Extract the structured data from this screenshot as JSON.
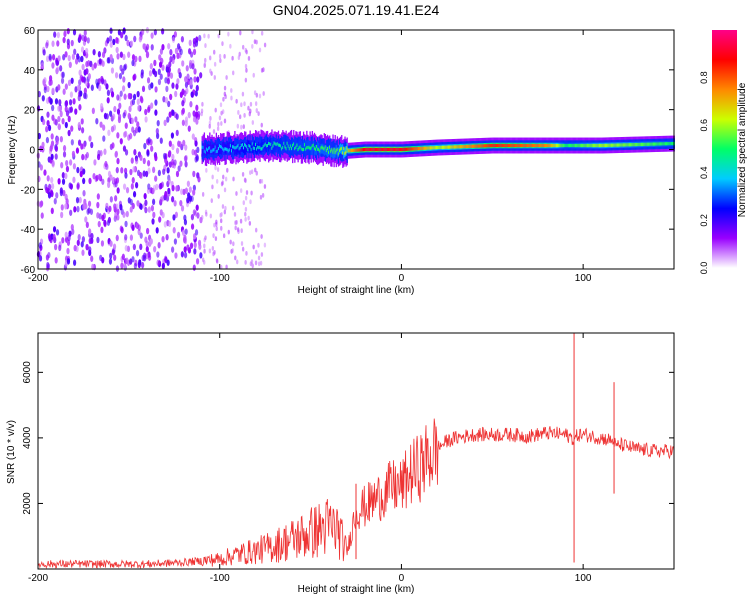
{
  "figure": {
    "title": "GN04.2025.071.19.41.E24"
  },
  "chart_data": [
    {
      "type": "heatmap",
      "xlabel": "Height of straight line (km)",
      "ylabel": "Frequency (Hz)",
      "xlim": [
        -200,
        150
      ],
      "ylim": [
        -60,
        60
      ],
      "xticks": [
        -200,
        -100,
        0,
        100
      ],
      "yticks": [
        -60,
        -40,
        -20,
        0,
        20,
        40,
        60
      ],
      "colorbar": {
        "label": "Normalized spectral amplitude",
        "range": [
          0,
          1
        ],
        "ticks": [
          "0.0",
          "0.2",
          "0.4",
          "0.6",
          "0.8"
        ],
        "colors": [
          "#ffffff",
          "#9900ff",
          "#0000ff",
          "#00ccff",
          "#00ff66",
          "#ccff00",
          "#ff8800",
          "#ff0000",
          "#ff0088"
        ]
      },
      "ridge": {
        "x": [
          -110,
          -90,
          -70,
          -50,
          -35,
          -20,
          0,
          20,
          50,
          80,
          90,
          110,
          150
        ],
        "center_hz": [
          0,
          1,
          2,
          1,
          -1,
          0,
          0,
          1,
          2,
          2,
          2,
          2,
          3
        ],
        "peak_amplitude": [
          0.35,
          0.4,
          0.45,
          0.5,
          0.55,
          0.9,
          0.9,
          0.6,
          0.85,
          0.75,
          0.5,
          0.6,
          0.5
        ]
      },
      "noise_region": {
        "x": [
          -200,
          -110
        ],
        "amplitude": [
          0.0,
          0.3
        ]
      }
    },
    {
      "type": "line",
      "xlabel": "Height of straight line (km)",
      "ylabel": "SNR (10 * v/v)",
      "xlim": [
        -200,
        150
      ],
      "ylim": [
        0,
        7200
      ],
      "xticks": [
        -200,
        -100,
        0,
        100
      ],
      "yticks": [
        2000,
        4000,
        6000
      ],
      "series": [
        {
          "color": "#ee3333",
          "x": [
            -200,
            -180,
            -160,
            -140,
            -120,
            -110,
            -100,
            -90,
            -80,
            -70,
            -60,
            -50,
            -40,
            -35,
            -30,
            -25,
            -20,
            -15,
            -10,
            -5,
            0,
            5,
            10,
            15,
            20,
            25,
            30,
            40,
            50,
            60,
            70,
            80,
            90,
            94,
            95,
            96,
            97,
            100,
            110,
            117,
            118,
            120,
            130,
            140,
            150
          ],
          "y": [
            150,
            150,
            150,
            150,
            200,
            250,
            300,
            450,
            550,
            700,
            900,
            1100,
            1300,
            1200,
            500,
            1800,
            1900,
            2100,
            2300,
            2500,
            2500,
            2900,
            3100,
            3400,
            3700,
            3900,
            4000,
            4100,
            4100,
            4100,
            4050,
            4150,
            4100,
            4000,
            3900,
            4000,
            4100,
            4100,
            4000,
            3900,
            3700,
            3800,
            3650,
            3600,
            3600
          ]
        }
      ],
      "spikes": [
        {
          "x": 95,
          "high": 7200,
          "low": 200
        },
        {
          "x": 117,
          "high": 5700,
          "low": 2300
        },
        {
          "x": -25,
          "high": 2600,
          "low": 300
        }
      ]
    }
  ]
}
